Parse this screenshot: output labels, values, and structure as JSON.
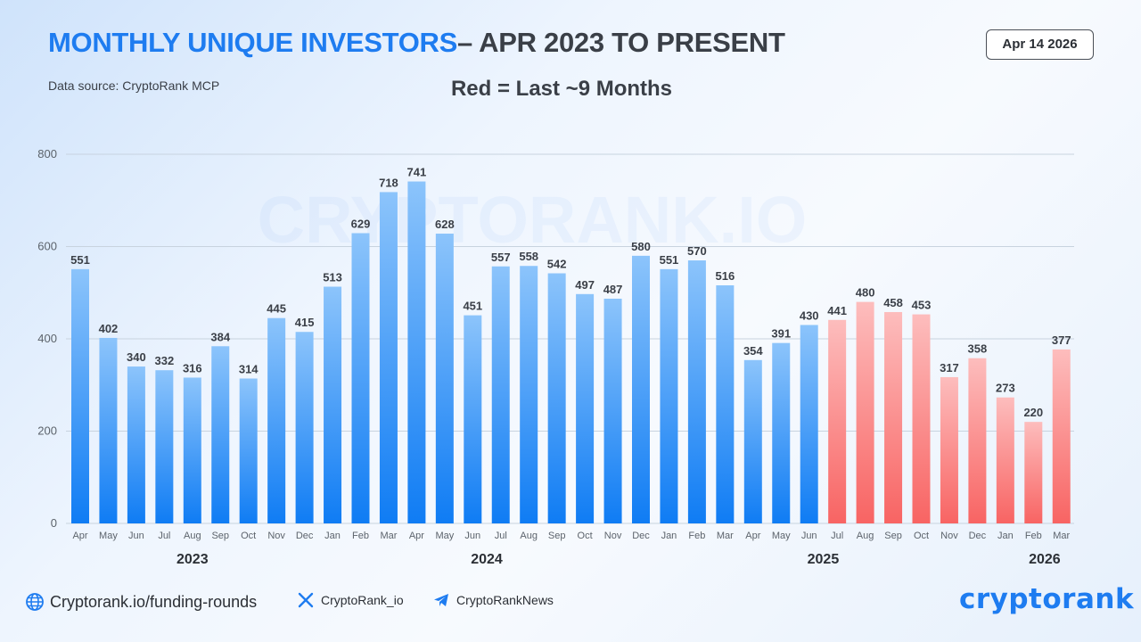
{
  "header": {
    "title_accent": "MONTHLY UNIQUE INVESTORS",
    "title_rest": "– APR 2023 TO PRESENT",
    "source": "Data source: CryptoRank MCP",
    "subtitle": "Red = Last ~9 Months",
    "date": "Apr 14 2026"
  },
  "chart_data": {
    "type": "bar",
    "title": "MONTHLY UNIQUE INVESTORS – APR 2023 TO PRESENT",
    "watermark": "CRYPTORANK.IO",
    "categories": [
      "Apr",
      "May",
      "Jun",
      "Jul",
      "Aug",
      "Sep",
      "Oct",
      "Nov",
      "Dec",
      "Jan",
      "Feb",
      "Mar",
      "Apr",
      "May",
      "Jun",
      "Jul",
      "Aug",
      "Sep",
      "Oct",
      "Nov",
      "Dec",
      "Jan",
      "Feb",
      "Mar",
      "Apr",
      "May",
      "Jun",
      "Jul",
      "Aug",
      "Sep",
      "Oct",
      "Nov",
      "Dec",
      "Jan",
      "Feb",
      "Mar"
    ],
    "years": [
      "2023",
      "2023",
      "2023",
      "2023",
      "2023",
      "2023",
      "2023",
      "2023",
      "2023",
      "2024",
      "2024",
      "2024",
      "2024",
      "2024",
      "2024",
      "2024",
      "2024",
      "2024",
      "2024",
      "2024",
      "2024",
      "2025",
      "2025",
      "2025",
      "2025",
      "2025",
      "2025",
      "2025",
      "2025",
      "2025",
      "2025",
      "2025",
      "2025",
      "2026",
      "2026",
      "2026"
    ],
    "values": [
      551,
      402,
      340,
      332,
      316,
      384,
      314,
      445,
      415,
      513,
      629,
      718,
      741,
      628,
      451,
      557,
      558,
      542,
      497,
      487,
      580,
      551,
      570,
      516,
      354,
      391,
      430,
      441,
      480,
      458,
      453,
      317,
      358,
      273,
      220,
      377
    ],
    "highlight_from_index": 27,
    "year_labels": [
      "2023",
      "2024",
      "2025",
      "2026"
    ],
    "ylim": [
      0,
      800
    ],
    "yticks": [
      0,
      200,
      400,
      600,
      800
    ],
    "grid": true,
    "colors": {
      "blue_top": "#8cc4fb",
      "blue_bottom": "#0f7cf4",
      "red_top": "#fdbdbd",
      "red_bottom": "#f86463"
    }
  },
  "footer": {
    "website": "Cryptorank.io/funding-rounds",
    "x_handle": "CryptoRank_io",
    "telegram": "CryptoRankNews",
    "logo": "cryptorank",
    "icons": [
      "globe-icon",
      "x-icon",
      "telegram-icon"
    ]
  }
}
